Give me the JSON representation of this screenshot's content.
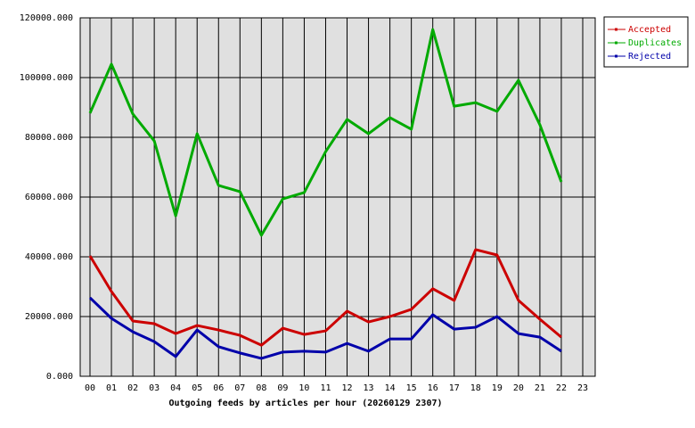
{
  "chart_data": {
    "type": "line",
    "x_label": "Outgoing feeds by articles per hour (20260129 2307)",
    "categories": [
      "00",
      "01",
      "02",
      "03",
      "04",
      "05",
      "06",
      "07",
      "08",
      "09",
      "10",
      "11",
      "12",
      "13",
      "14",
      "15",
      "16",
      "17",
      "18",
      "19",
      "20",
      "21",
      "22",
      "23"
    ],
    "series": [
      {
        "name": "Accepted",
        "color": "#cc0000",
        "values": [
          40300,
          28400,
          18500,
          17600,
          14300,
          17000,
          15500,
          13700,
          10400,
          16100,
          14000,
          15200,
          21800,
          18200,
          20000,
          22400,
          29300,
          25400,
          42400,
          40600,
          25400,
          19100,
          13100,
          null
        ]
      },
      {
        "name": "Duplicates",
        "color": "#00aa00",
        "values": [
          88100,
          104500,
          87800,
          78800,
          53700,
          81200,
          63900,
          61800,
          47200,
          59400,
          61500,
          75200,
          86000,
          81200,
          86600,
          82700,
          116100,
          90400,
          91600,
          88700,
          99100,
          84200,
          65100,
          null
        ]
      },
      {
        "name": "Rejected",
        "color": "#0000aa",
        "values": [
          26300,
          19400,
          14900,
          11600,
          6600,
          15500,
          9900,
          7800,
          6000,
          8100,
          8400,
          8100,
          11000,
          8400,
          12500,
          12500,
          20600,
          15800,
          16400,
          20000,
          14300,
          13100,
          8400,
          null
        ]
      }
    ],
    "ylim": [
      0,
      120000
    ],
    "yticks": [
      {
        "value": 0,
        "label": "0.000"
      },
      {
        "value": 20000,
        "label": "20000.000"
      },
      {
        "value": 40000,
        "label": "40000.000"
      },
      {
        "value": 60000,
        "label": "60000.000"
      },
      {
        "value": 80000,
        "label": "80000.000"
      },
      {
        "value": 100000,
        "label": "100000.000"
      },
      {
        "value": 120000,
        "label": "120000.000"
      }
    ],
    "grid": true,
    "legend": "outside-top-right",
    "background": "#e0e0e0"
  }
}
